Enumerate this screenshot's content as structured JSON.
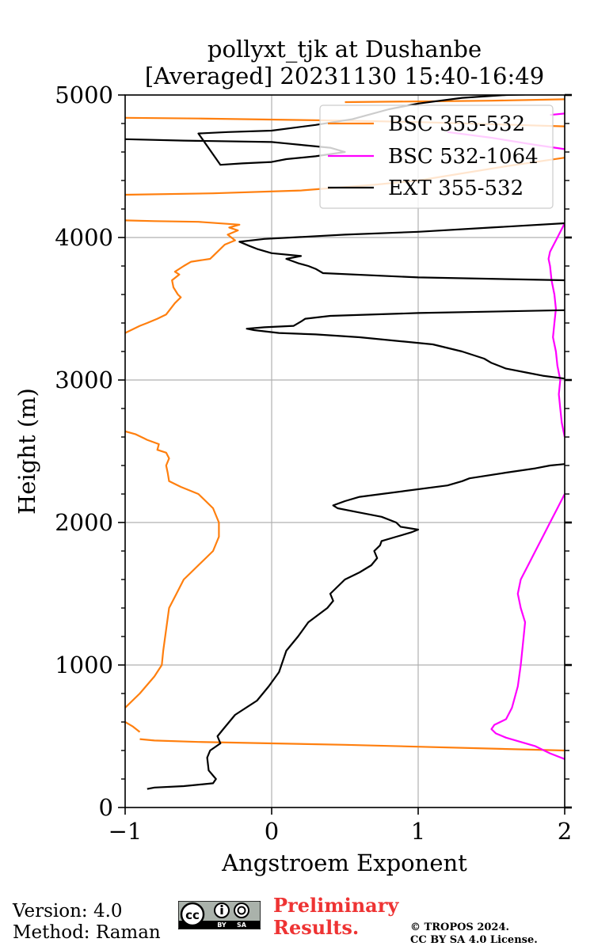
{
  "chart_data": {
    "type": "line",
    "title": "pollyxt_tjk at Dushanbe",
    "subtitle": "[Averaged] 20231130 15:40-16:49",
    "xlabel": "Angstroem Exponent",
    "ylabel": "Height (m)",
    "xlim": [
      -1,
      2
    ],
    "ylim": [
      0,
      5000
    ],
    "xticks": [
      -1,
      0,
      1,
      2
    ],
    "xtick_labels": [
      "−1",
      "0",
      "1",
      "2"
    ],
    "yticks": [
      0,
      1000,
      2000,
      3000,
      4000,
      5000
    ],
    "ytick_labels": [
      "0",
      "1000",
      "2000",
      "3000",
      "4000",
      "5000"
    ],
    "grid": true,
    "legend_position": "top-right",
    "series": [
      {
        "name": "BSC 355-532",
        "color": "#ff7f0e",
        "segments": [
          {
            "x": [
              2.0,
              0.5,
              -0.5,
              -0.8,
              -0.9
            ],
            "y": [
              400,
              440,
              460,
              470,
              480
            ]
          },
          {
            "x": [
              -0.9,
              -0.95,
              -1.0
            ],
            "y": [
              530,
              570,
              600
            ]
          },
          {
            "x": [
              -1.0,
              -0.9,
              -0.8,
              -0.75,
              -0.74,
              -0.72,
              -0.7,
              -0.65,
              -0.6,
              -0.55,
              -0.5,
              -0.45,
              -0.4,
              -0.36,
              -0.36,
              -0.4,
              -0.45,
              -0.5,
              -0.62,
              -0.7,
              -0.71,
              -0.72,
              -0.7,
              -0.72,
              -0.78,
              -0.77,
              -0.85,
              -0.87,
              -0.93,
              -1.0
            ],
            "y": [
              700,
              800,
              920,
              1000,
              1100,
              1250,
              1400,
              1500,
              1600,
              1650,
              1700,
              1750,
              1800,
              1900,
              2000,
              2100,
              2150,
              2200,
              2250,
              2290,
              2350,
              2400,
              2450,
              2490,
              2510,
              2550,
              2580,
              2590,
              2620,
              2640
            ]
          },
          {
            "x": [
              -1.0,
              -0.9,
              -0.85,
              -0.78,
              -0.72,
              -0.66,
              -0.62,
              -0.64,
              -0.67,
              -0.68,
              -0.63,
              -0.66,
              -0.6,
              -0.55,
              -0.42,
              -0.4,
              -0.32,
              -0.25,
              -0.3,
              -0.23,
              -0.29,
              -0.22,
              -0.5,
              -0.8,
              -1.0
            ],
            "y": [
              3330,
              3380,
              3400,
              3430,
              3460,
              3540,
              3580,
              3600,
              3650,
              3700,
              3740,
              3760,
              3800,
              3830,
              3850,
              3870,
              3950,
              3980,
              4020,
              4050,
              4070,
              4090,
              4110,
              4115,
              4120
            ]
          },
          {
            "x": [
              -1.0,
              -0.4,
              0.2,
              0.7,
              1.0,
              1.3,
              1.6,
              2.0
            ],
            "y": [
              4300,
              4310,
              4330,
              4370,
              4400,
              4450,
              4500,
              4560
            ]
          },
          {
            "x": [
              2.0,
              1.0,
              0.5,
              -0.5,
              -1.0
            ],
            "y": [
              4780,
              4810,
              4820,
              4835,
              4840
            ]
          },
          {
            "x": [
              0.5,
              1.0,
              1.5,
              2.0
            ],
            "y": [
              4950,
              4955,
              4960,
              4970
            ]
          }
        ]
      },
      {
        "name": "BSC 532-1064",
        "color": "#ff00ff",
        "segments": [
          {
            "x": [
              2.0,
              1.9,
              1.8,
              1.7,
              1.6,
              1.53,
              1.5,
              1.52,
              1.6,
              1.64,
              1.68,
              1.7,
              1.72,
              1.73,
              1.7,
              1.68,
              1.7,
              1.75,
              1.8,
              1.85,
              1.9,
              1.95,
              2.0
            ],
            "y": [
              340,
              380,
              430,
              460,
              490,
              520,
              550,
              580,
              620,
              700,
              850,
              1000,
              1200,
              1300,
              1400,
              1500,
              1600,
              1700,
              1800,
              1900,
              2000,
              2100,
              2200
            ]
          },
          {
            "x": [
              2.0,
              1.98,
              1.97,
              1.96,
              1.97,
              1.95,
              1.94,
              1.92,
              1.93,
              1.94,
              1.93,
              1.91,
              1.9,
              1.89,
              1.9,
              1.95,
              2.0
            ],
            "y": [
              2600,
              2700,
              2800,
              2900,
              3000,
              3100,
              3200,
              3300,
              3400,
              3500,
              3600,
              3700,
              3800,
              3850,
              3900,
              4000,
              4100
            ]
          },
          {
            "x": [
              1.2,
              1.5,
              1.8,
              2.0
            ],
            "y": [
              4740,
              4700,
              4650,
              4620
            ]
          },
          {
            "x": [
              1.9,
              2.0
            ],
            "y": [
              4860,
              4870
            ]
          }
        ]
      },
      {
        "name": "EXT 355-532",
        "color": "#000000",
        "segments": [
          {
            "x": [
              -0.85,
              -0.8,
              -0.6,
              -0.4,
              -0.38,
              -0.43,
              -0.44,
              -0.42,
              -0.35,
              -0.37,
              -0.33,
              -0.25,
              -0.1,
              -0.02,
              0.05,
              0.1,
              0.18,
              0.25,
              0.38,
              0.42,
              0.4,
              0.5,
              0.6,
              0.68,
              0.72,
              0.7,
              0.74,
              0.75,
              0.85,
              0.95,
              1.0,
              0.88,
              0.85,
              0.75,
              0.6,
              0.45,
              0.42,
              0.5,
              0.6,
              0.75,
              0.9,
              1.2,
              1.3,
              1.35,
              1.6,
              1.8,
              1.9,
              2.0
            ],
            "y": [
              130,
              140,
              150,
              170,
              200,
              260,
              350,
              400,
              450,
              500,
              550,
              650,
              750,
              850,
              950,
              1100,
              1200,
              1300,
              1400,
              1450,
              1500,
              1600,
              1650,
              1700,
              1750,
              1800,
              1840,
              1870,
              1900,
              1930,
              1950,
              1970,
              2000,
              2040,
              2070,
              2100,
              2120,
              2150,
              2180,
              2200,
              2220,
              2260,
              2290,
              2310,
              2350,
              2380,
              2400,
              2410
            ]
          },
          {
            "x": [
              2.0,
              1.85,
              1.75,
              1.6,
              1.55,
              1.5,
              1.45,
              1.3,
              1.1,
              0.9,
              0.6,
              0.3,
              0.05,
              -0.12,
              -0.17,
              -0.05,
              0.15,
              0.2,
              0.23,
              0.4,
              1.0,
              2.0
            ],
            "y": [
              3010,
              3030,
              3050,
              3080,
              3100,
              3120,
              3150,
              3200,
              3250,
              3270,
              3300,
              3320,
              3330,
              3350,
              3360,
              3370,
              3380,
              3410,
              3430,
              3450,
              3470,
              3490
            ]
          },
          {
            "x": [
              2.0,
              1.0,
              0.35,
              0.3,
              0.25,
              0.18,
              0.1,
              0.2,
              0.0,
              -0.1,
              -0.15,
              -0.22,
              -0.05,
              0.5,
              1.0,
              1.5,
              2.0
            ],
            "y": [
              3700,
              3720,
              3750,
              3780,
              3800,
              3820,
              3850,
              3870,
              3890,
              3920,
              3940,
              3970,
              3990,
              4020,
              4040,
              4070,
              4100
            ]
          },
          {
            "x": [
              -1.0,
              -0.6,
              0.0,
              0.1,
              0.2,
              0.4,
              0.5,
              0.3,
              0.1,
              0.0,
              -0.2,
              -0.35,
              -0.5,
              -0.3,
              0.0,
              0.3,
              0.55,
              0.8,
              1.0,
              1.3,
              1.6,
              2.0
            ],
            "y": [
              4690,
              4680,
              4670,
              4660,
              4650,
              4630,
              4600,
              4570,
              4550,
              4530,
              4520,
              4510,
              4730,
              4740,
              4750,
              4790,
              4830,
              4900,
              4940,
              4980,
              5000,
              5010
            ]
          }
        ]
      }
    ]
  },
  "footer": {
    "version": "Version: 4.0",
    "method": "Method: Raman",
    "preliminary_line1": "Preliminary",
    "preliminary_line2": "Results.",
    "copyright_line1": "© TROPOS 2024.",
    "copyright_line2": "CC BY SA 4.0 License.",
    "cc_logo_text": "cc",
    "cc_by": "BY",
    "cc_sa": "SA"
  }
}
